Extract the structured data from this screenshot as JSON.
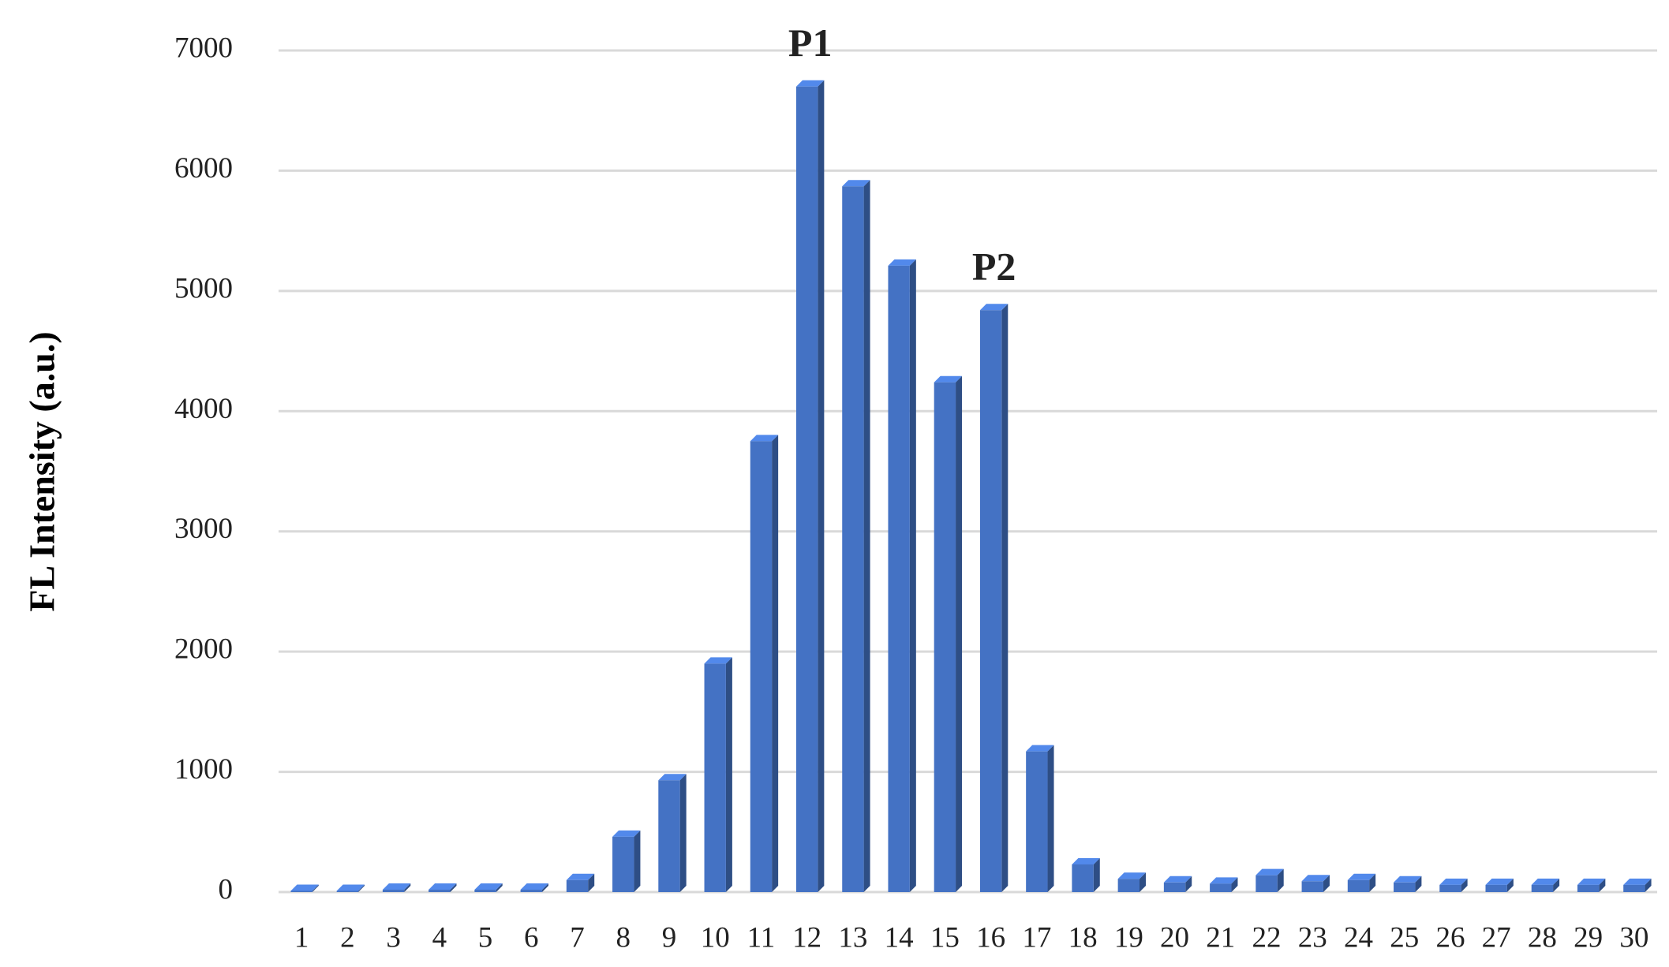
{
  "chart_data": {
    "type": "bar",
    "y_label": "FL Intensity (a.u.)",
    "categories": [
      "1",
      "2",
      "3",
      "4",
      "5",
      "6",
      "7",
      "8",
      "9",
      "10",
      "11",
      "12",
      "13",
      "14",
      "15",
      "16",
      "17",
      "18",
      "19",
      "20",
      "21",
      "22",
      "23",
      "24",
      "25",
      "26",
      "27",
      "28",
      "29",
      "30"
    ],
    "values": [
      10,
      10,
      20,
      20,
      20,
      20,
      100,
      460,
      930,
      1900,
      3750,
      6700,
      5870,
      5210,
      4240,
      4840,
      1170,
      230,
      110,
      80,
      70,
      140,
      90,
      100,
      80,
      60,
      60,
      60,
      60,
      60
    ],
    "color": "#4472c4",
    "ylim": [
      0,
      7000
    ],
    "yticks": [
      0,
      1000,
      2000,
      3000,
      4000,
      5000,
      6000,
      7000
    ],
    "grid": true,
    "annotations": [
      {
        "text": "P1",
        "category": "12",
        "color": "#ff0000"
      },
      {
        "text": "P2",
        "category": "16",
        "color": "#ff0000"
      }
    ]
  }
}
